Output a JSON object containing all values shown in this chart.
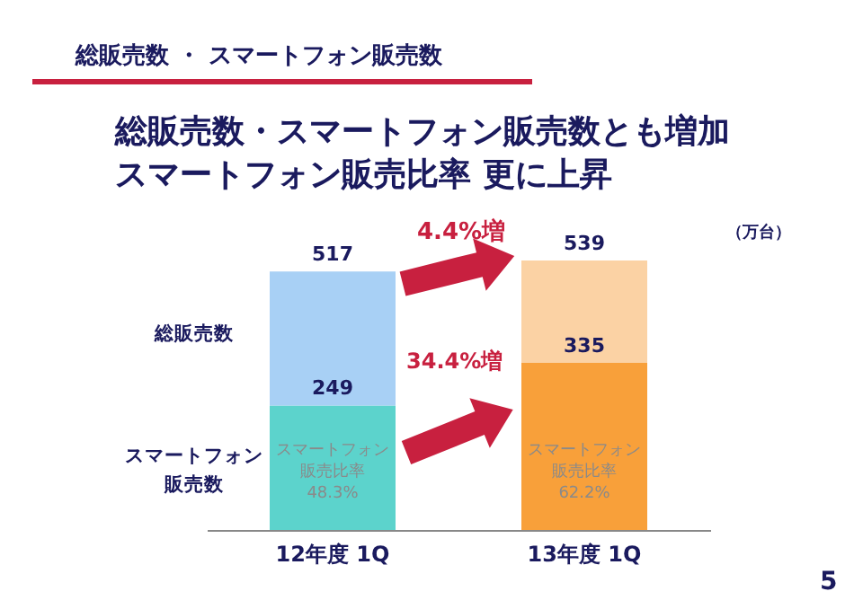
{
  "chart_data": {
    "type": "bar",
    "title": "総販売数 ・ スマートフォン販売数",
    "subtitle": "総販売数・スマートフォン販売数とも増加スマートフォン販売比率 更に上昇",
    "categories": [
      "12年度 1Q",
      "13年度 1Q"
    ],
    "stacked": true,
    "series": [
      {
        "name": "スマートフォン販売数",
        "colors": [
          "#5cd3cc",
          "#f8a03a"
        ],
        "values": [
          249,
          335
        ],
        "value_labels": [
          "249",
          "335"
        ]
      },
      {
        "name": "総販売数",
        "colors": [
          "#a8d0f5",
          "#fbd2a4"
        ],
        "values": [
          268,
          204
        ]
      }
    ],
    "totals": [
      "517",
      "539"
    ],
    "annotations": [
      "スマートフォン販売比率",
      "48.3%",
      "スマートフォン販売比率",
      "62.2%",
      "4.4%増",
      "34.4%増",
      "（万台）",
      "5"
    ]
  }
}
